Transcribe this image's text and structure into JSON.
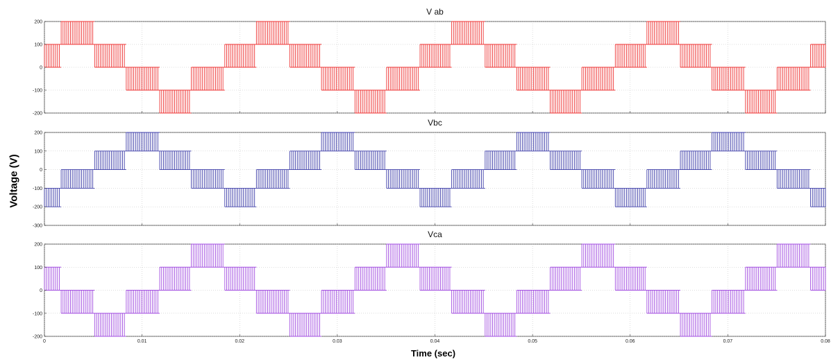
{
  "chart_data": [
    {
      "type": "line",
      "title": "V ab",
      "color": "#ee3333",
      "xlim": [
        0,
        0.08
      ],
      "ylim": [
        -200,
        200
      ],
      "yticks": [
        200,
        100,
        0,
        -100,
        -200
      ],
      "xticks": [
        0,
        0.01,
        0.02,
        0.03,
        0.04,
        0.05,
        0.06,
        0.07,
        0.08
      ],
      "xtick_labels": [
        "0",
        "0.01",
        "0.02",
        "0.03",
        "0.04",
        "0.05",
        "0.06",
        "0.07",
        "0.08"
      ],
      "show_xtick_labels": false,
      "fundamental_hz": 50,
      "phase_deg": 30,
      "levels": [
        200,
        100,
        0,
        -100,
        -200
      ],
      "grid": true
    },
    {
      "type": "line",
      "title": "Vbc",
      "color": "#3d3da8",
      "xlim": [
        0,
        0.08
      ],
      "ylim": [
        -300,
        200
      ],
      "yticks": [
        200,
        100,
        0,
        -100,
        -200,
        -300
      ],
      "xticks": [
        0,
        0.01,
        0.02,
        0.03,
        0.04,
        0.05,
        0.06,
        0.07,
        0.08
      ],
      "xtick_labels": [
        "0",
        "0.01",
        "0.02",
        "0.03",
        "0.04",
        "0.05",
        "0.06",
        "0.07",
        "0.08"
      ],
      "show_xtick_labels": false,
      "fundamental_hz": 50,
      "phase_deg": -90,
      "levels": [
        200,
        100,
        0,
        -100,
        -200
      ],
      "grid": true
    },
    {
      "type": "line",
      "title": "Vca",
      "color": "#a24de0",
      "xlim": [
        0,
        0.08
      ],
      "ylim": [
        -200,
        200
      ],
      "yticks": [
        200,
        100,
        0,
        -100,
        -200
      ],
      "xticks": [
        0,
        0.01,
        0.02,
        0.03,
        0.04,
        0.05,
        0.06,
        0.07,
        0.08
      ],
      "xtick_labels": [
        "0",
        "0.01",
        "0.02",
        "0.03",
        "0.04",
        "0.05",
        "0.06",
        "0.07",
        "0.08"
      ],
      "show_xtick_labels": true,
      "fundamental_hz": 50,
      "phase_deg": 150,
      "levels": [
        200,
        100,
        0,
        -100,
        -200
      ],
      "grid": true
    }
  ],
  "ylabel": "Voltage (V)",
  "xlabel": "Time (sec)"
}
